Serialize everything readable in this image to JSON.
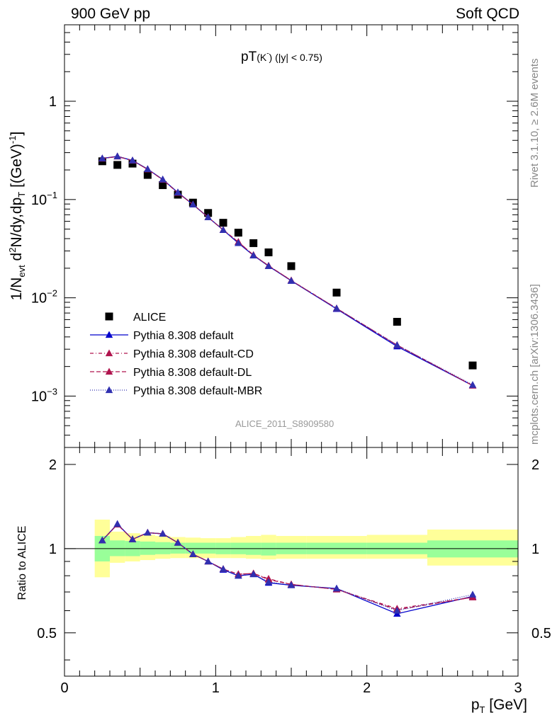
{
  "header": {
    "left": "900 GeV pp",
    "right": "Soft QCD"
  },
  "side": {
    "rivet": "Rivet 3.1.10, ≥ 2.6M events",
    "mcplots": "mcplots.cern.ch [arXiv:1306.3436]"
  },
  "chart_data": [
    {
      "type": "scatter",
      "title": "pT(K⁻) (|y| < 0.75)",
      "title_parts": {
        "main": "pT",
        "sub": "(K",
        "sup": "-",
        "rest": ") (|y| < 0.75)"
      },
      "watermark": "ALICE_2011_S8909580",
      "ylabel": "1/N_evt d²N/dy,dp_T [(GeV)⁻¹]",
      "xlim": [
        0,
        3
      ],
      "ylim": [
        0.0003,
        6.0
      ],
      "yscale": "log",
      "ytick_labels": [
        {
          "v": 1,
          "base": "1",
          "exp": ""
        },
        {
          "v": 0.1,
          "base": "10",
          "exp": "−1"
        },
        {
          "v": 0.01,
          "base": "10",
          "exp": "−2"
        },
        {
          "v": 0.001,
          "base": "10",
          "exp": "−3"
        }
      ],
      "legend_position": "bottom-left",
      "x": [
        0.25,
        0.35,
        0.45,
        0.55,
        0.65,
        0.75,
        0.85,
        0.95,
        1.05,
        1.15,
        1.25,
        1.35,
        1.5,
        1.8,
        2.2,
        2.7
      ],
      "series": [
        {
          "name": "ALICE",
          "role": "data",
          "marker": "square",
          "color": "#000000",
          "values": [
            0.245,
            0.225,
            0.232,
            0.178,
            0.14,
            0.112,
            0.093,
            0.073,
            0.058,
            0.046,
            0.036,
            0.029,
            0.021,
            0.0113,
            0.0057,
            0.00205
          ]
        },
        {
          "name": "Pythia 8.308 default",
          "marker": "triangle",
          "color": "#0000cc",
          "dash": "",
          "values": [
            0.262,
            0.275,
            0.25,
            0.204,
            0.16,
            0.118,
            0.089,
            0.066,
            0.049,
            0.036,
            0.027,
            0.021,
            0.0149,
            0.0077,
            0.0032,
            0.00128
          ]
        },
        {
          "name": "Pythia 8.308 default-CD",
          "marker": "triangle",
          "color": "#b0144e",
          "dash": "5,3,1,3",
          "values": [
            0.261,
            0.274,
            0.249,
            0.203,
            0.159,
            0.117,
            0.089,
            0.066,
            0.049,
            0.037,
            0.0272,
            0.0212,
            0.015,
            0.0078,
            0.0033,
            0.00128
          ]
        },
        {
          "name": "Pythia 8.308 default-DL",
          "marker": "triangle",
          "color": "#b0144e",
          "dash": "6,3",
          "values": [
            0.261,
            0.274,
            0.249,
            0.203,
            0.159,
            0.117,
            0.089,
            0.066,
            0.049,
            0.037,
            0.0272,
            0.0212,
            0.015,
            0.0078,
            0.0033,
            0.00128
          ]
        },
        {
          "name": "Pythia 8.308 default-MBR",
          "marker": "triangle",
          "color": "#3030b0",
          "dash": "1,2",
          "values": [
            0.262,
            0.275,
            0.25,
            0.204,
            0.16,
            0.118,
            0.089,
            0.066,
            0.049,
            0.036,
            0.027,
            0.021,
            0.0149,
            0.0078,
            0.0033,
            0.0013
          ]
        }
      ]
    },
    {
      "type": "line",
      "ylabel": "Ratio to ALICE",
      "xlabel": "p_T [GeV]",
      "xlim": [
        0,
        3
      ],
      "ylim": [
        0.35,
        2.3
      ],
      "yscale": "log",
      "xticks": [
        0,
        1,
        2,
        3
      ],
      "yticks": [
        0.5,
        1,
        2
      ],
      "reference_line": 1.0,
      "x": [
        0.25,
        0.35,
        0.45,
        0.55,
        0.65,
        0.75,
        0.85,
        0.95,
        1.05,
        1.15,
        1.25,
        1.35,
        1.5,
        1.8,
        2.2,
        2.7
      ],
      "bands": {
        "bin_edges": [
          0.2,
          0.3,
          0.4,
          0.5,
          0.6,
          0.7,
          0.8,
          0.9,
          1.0,
          1.1,
          1.2,
          1.3,
          1.4,
          1.6,
          2.0,
          2.4,
          3.0
        ],
        "stat": {
          "color": "#99ff99",
          "lo": [
            0.9,
            0.94,
            0.94,
            0.95,
            0.955,
            0.96,
            0.96,
            0.96,
            0.955,
            0.955,
            0.95,
            0.945,
            0.955,
            0.955,
            0.955,
            0.93
          ],
          "hi": [
            1.11,
            1.07,
            1.065,
            1.06,
            1.055,
            1.05,
            1.05,
            1.05,
            1.05,
            1.05,
            1.05,
            1.05,
            1.05,
            1.05,
            1.05,
            1.07
          ]
        },
        "total": {
          "color": "#ffff99",
          "lo": [
            0.79,
            0.89,
            0.9,
            0.91,
            0.92,
            0.925,
            0.925,
            0.925,
            0.925,
            0.925,
            0.92,
            0.915,
            0.92,
            0.92,
            0.92,
            0.87
          ],
          "hi": [
            1.27,
            1.15,
            1.135,
            1.12,
            1.11,
            1.1,
            1.095,
            1.09,
            1.09,
            1.1,
            1.11,
            1.12,
            1.11,
            1.11,
            1.12,
            1.17
          ]
        }
      },
      "series": [
        {
          "name": "Pythia 8.308 default",
          "color": "#0000cc",
          "dash": "",
          "values": [
            1.07,
            1.225,
            1.08,
            1.14,
            1.13,
            1.05,
            0.955,
            0.9,
            0.84,
            0.8,
            0.81,
            0.755,
            0.74,
            0.72,
            0.585,
            0.675
          ]
        },
        {
          "name": "Pythia 8.308 default-CD",
          "color": "#b0144e",
          "dash": "5,3,1,3",
          "values": [
            1.07,
            1.22,
            1.08,
            1.14,
            1.13,
            1.05,
            0.955,
            0.9,
            0.845,
            0.81,
            0.815,
            0.78,
            0.745,
            0.715,
            0.61,
            0.67
          ]
        },
        {
          "name": "Pythia 8.308 default-DL",
          "color": "#b0144e",
          "dash": "6,3",
          "values": [
            1.07,
            1.22,
            1.08,
            1.14,
            1.13,
            1.05,
            0.955,
            0.9,
            0.845,
            0.81,
            0.815,
            0.775,
            0.745,
            0.715,
            0.605,
            0.67
          ]
        },
        {
          "name": "Pythia 8.308 default-MBR",
          "color": "#3030b0",
          "dash": "1,2",
          "values": [
            1.07,
            1.225,
            1.08,
            1.14,
            1.13,
            1.05,
            0.955,
            0.9,
            0.845,
            0.8,
            0.81,
            0.76,
            0.74,
            0.72,
            0.6,
            0.685
          ]
        }
      ]
    }
  ]
}
